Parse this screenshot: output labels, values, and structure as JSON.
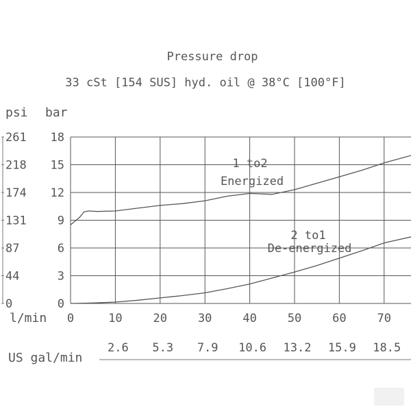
{
  "chart_data": {
    "type": "line",
    "title": "Pressure drop",
    "subtitle": "33 cSt [154 SUS] hyd. oil @ 38°C [100°F]",
    "xlabel": "l/min",
    "xlabel_secondary": "US gal/min",
    "ylabel_left": "psi",
    "ylabel_right": "bar",
    "xlim": [
      0,
      76
    ],
    "ylim": [
      0,
      18
    ],
    "grid": true,
    "x_ticks": [
      0,
      10,
      20,
      30,
      40,
      50,
      60,
      70
    ],
    "x_ticks_secondary": [
      2.6,
      5.3,
      7.9,
      10.6,
      13.2,
      15.9,
      18.5
    ],
    "y_ticks_bar": [
      0,
      3,
      6,
      9,
      12,
      15,
      18
    ],
    "y_ticks_psi": [
      0,
      44,
      87,
      131,
      174,
      218,
      261
    ],
    "series": [
      {
        "name": "1 to 2 Energized",
        "label_line1": "1 to2",
        "label_line2": "Energized",
        "x": [
          0,
          1,
          2,
          3,
          4,
          6,
          10,
          15,
          20,
          25,
          30,
          35,
          40,
          45,
          50,
          55,
          60,
          65,
          70,
          76
        ],
        "y": [
          8.5,
          8.9,
          9.3,
          9.9,
          10.0,
          9.95,
          10.0,
          10.3,
          10.6,
          10.8,
          11.1,
          11.6,
          11.9,
          11.8,
          12.3,
          13.0,
          13.7,
          14.4,
          15.2,
          16.0
        ]
      },
      {
        "name": "2 to 1 De-energized",
        "label_line1": "2 to1",
        "label_line2": "De-energized",
        "x": [
          0,
          5,
          10,
          15,
          20,
          25,
          30,
          35,
          40,
          45,
          50,
          55,
          60,
          65,
          70,
          76
        ],
        "y": [
          0.0,
          0.05,
          0.15,
          0.35,
          0.6,
          0.85,
          1.15,
          1.6,
          2.1,
          2.75,
          3.4,
          4.1,
          4.9,
          5.7,
          6.55,
          7.2
        ]
      }
    ]
  }
}
